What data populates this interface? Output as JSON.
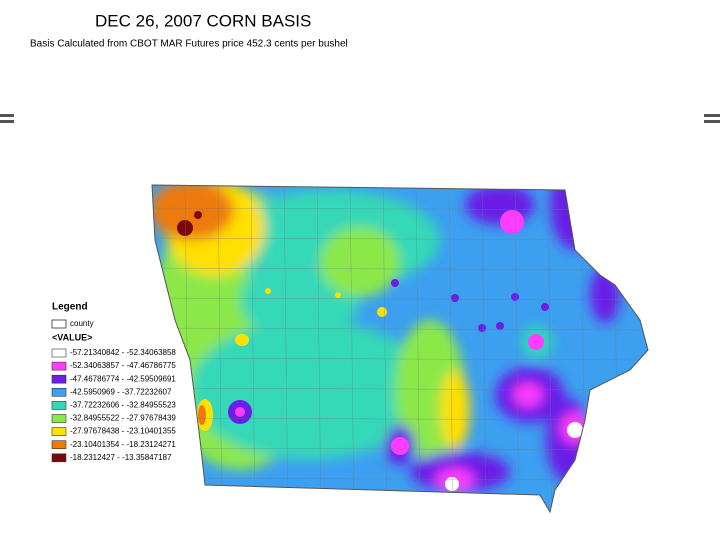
{
  "header": {
    "title": "DEC 26, 2007 CORN BASIS",
    "subtitle": "Basis Calculated from CBOT MAR Futures price 452.3 cents per bushel"
  },
  "legend": {
    "title": "Legend",
    "county": "county",
    "value_heading": "<VALUE>",
    "items": [
      {
        "label": "-57.21340842 - -52.34063858",
        "color": "#ffffff"
      },
      {
        "label": "-52.34063857 - -47.46786775",
        "color": "#ff3cff"
      },
      {
        "label": "-47.46786774 - -42.59509691",
        "color": "#6a1ee6"
      },
      {
        "label": "-42.5950969 - -37.72232607",
        "color": "#3c9ff0"
      },
      {
        "label": "-37.72232606 - -32.84955523",
        "color": "#34d8b8"
      },
      {
        "label": "-32.84955522 - -27.97678439",
        "color": "#8ce84a"
      },
      {
        "label": "-27.97678438 - -23.10401355",
        "color": "#ffe000"
      },
      {
        "label": "-23.10401354 - -18.23124271",
        "color": "#ee7a0c"
      },
      {
        "label": "-18.2312427 - -13.35847187",
        "color": "#7a0808"
      }
    ]
  }
}
